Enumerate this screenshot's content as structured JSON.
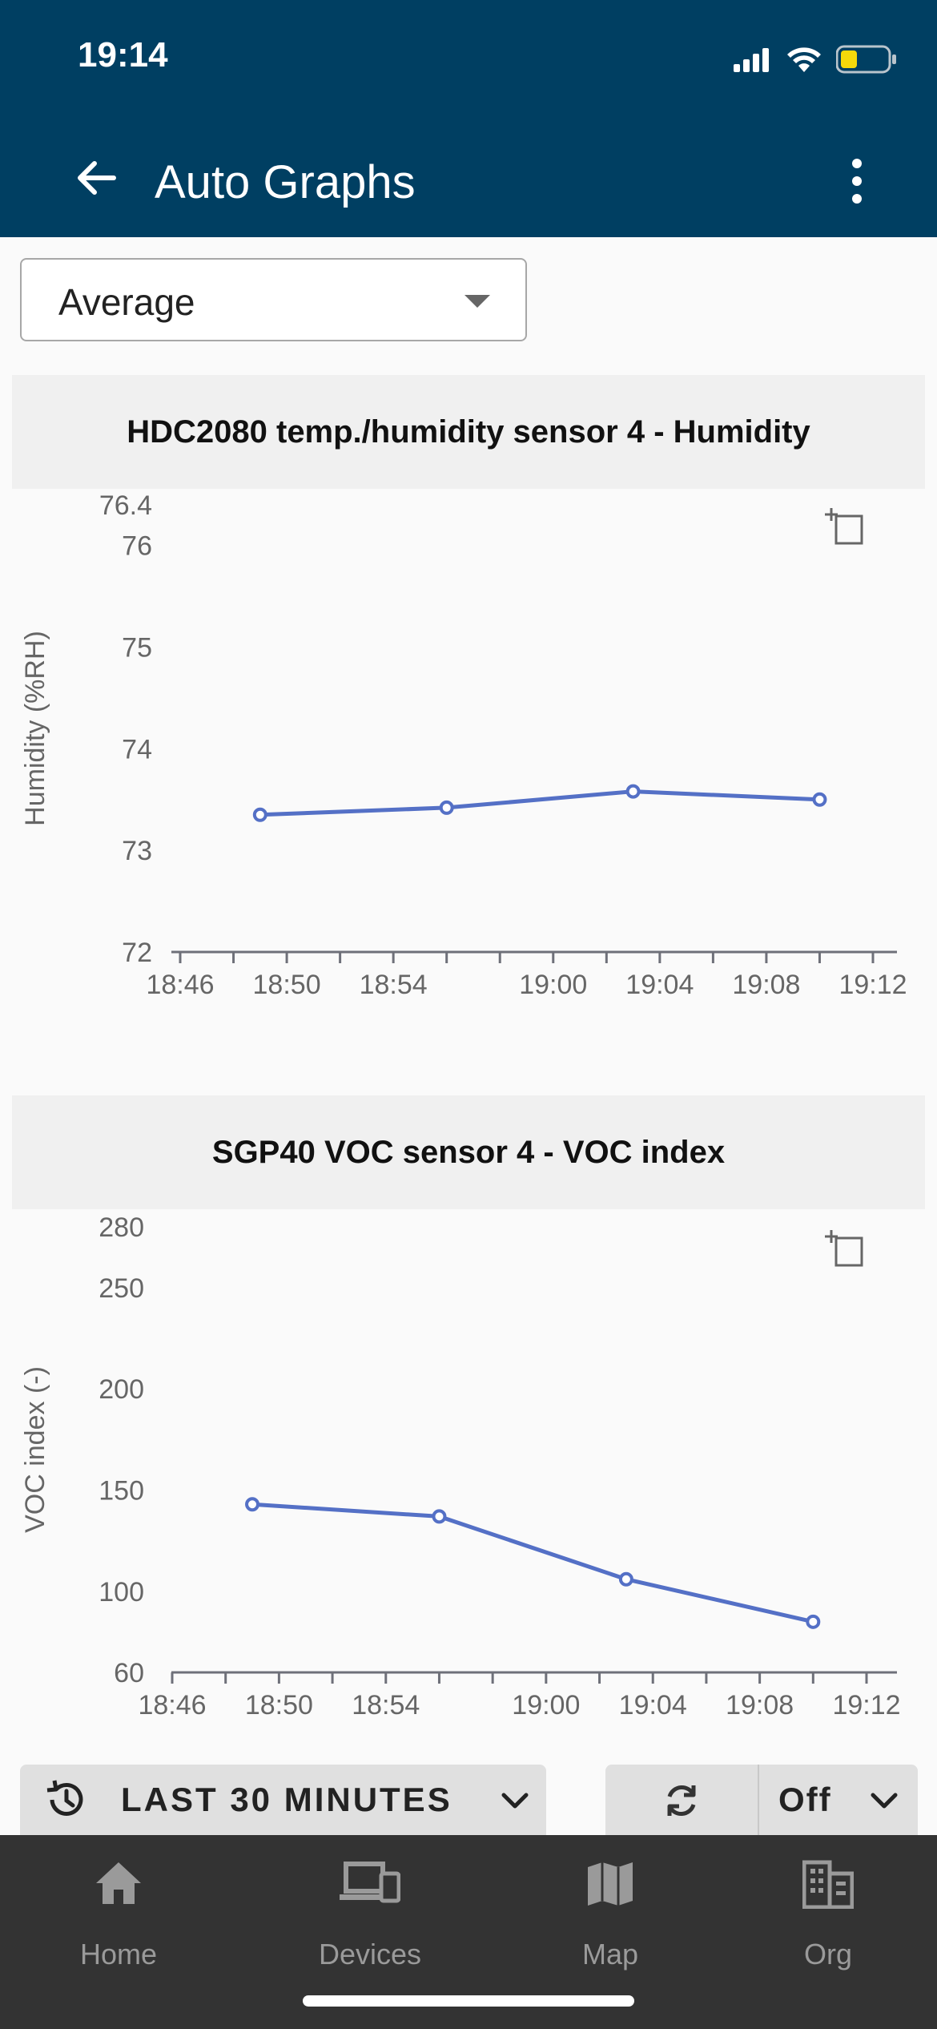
{
  "status_bar": {
    "time": "19:14"
  },
  "app_bar": {
    "title": "Auto Graphs"
  },
  "aggregation": {
    "selected": "Average"
  },
  "charts": [
    {
      "title": "HDC2080 temp./humidity sensor 4 - Humidity",
      "chart_data": {
        "type": "line",
        "title": "HDC2080 temp./humidity sensor 4 - Humidity",
        "ylabel": "Humidity (%RH)",
        "xlabel": "",
        "ylim": [
          72,
          76.4
        ],
        "y_ticks": [
          "72",
          "73",
          "74",
          "75",
          "76",
          "76.4"
        ],
        "x_ticks": [
          "18:46",
          "18:50",
          "18:54",
          "19:00",
          "19:04",
          "19:08",
          "19:12"
        ],
        "x": [
          "18:49",
          "18:56",
          "19:03",
          "19:10"
        ],
        "values": [
          73.35,
          73.42,
          73.58,
          73.5
        ],
        "color": "#5470c6"
      }
    },
    {
      "title": "SGP40 VOC sensor 4 - VOC index",
      "chart_data": {
        "type": "line",
        "title": "SGP40 VOC sensor 4 - VOC index",
        "ylabel": "VOC index (-)",
        "xlabel": "",
        "ylim": [
          60,
          280
        ],
        "y_ticks": [
          "60",
          "100",
          "150",
          "200",
          "250",
          "280"
        ],
        "x_ticks": [
          "18:46",
          "18:50",
          "18:54",
          "19:00",
          "19:04",
          "19:08",
          "19:12"
        ],
        "x": [
          "18:49",
          "18:56",
          "19:03",
          "19:10"
        ],
        "values": [
          143,
          137,
          106,
          85
        ],
        "color": "#5470c6"
      }
    }
  ],
  "controls": {
    "time_range": "LAST 30 MINUTES",
    "refresh_interval": "Off"
  },
  "bottom_nav": [
    {
      "label": "Home",
      "icon": "home-icon"
    },
    {
      "label": "Devices",
      "icon": "devices-icon"
    },
    {
      "label": "Map",
      "icon": "map-icon"
    },
    {
      "label": "Org",
      "icon": "org-icon"
    }
  ]
}
